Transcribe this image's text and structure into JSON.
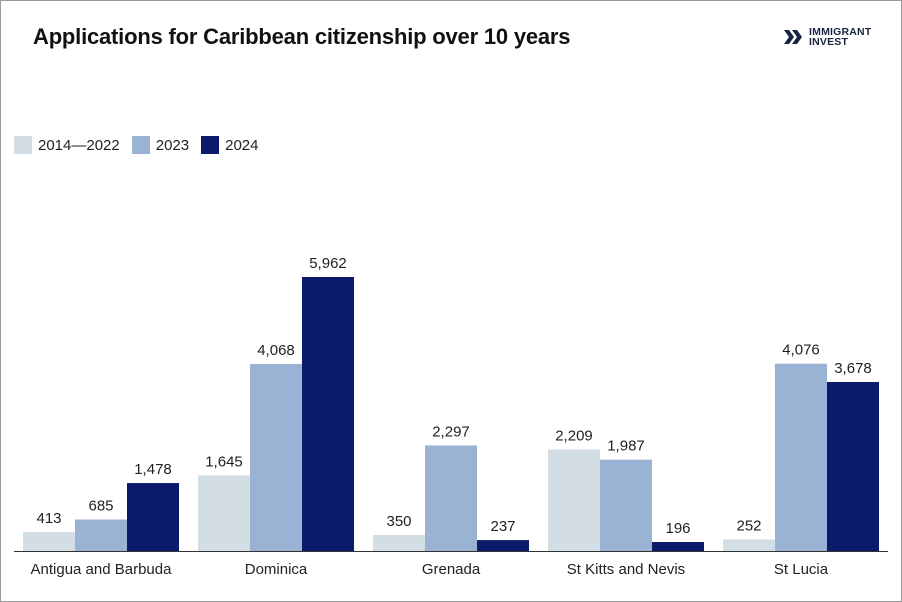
{
  "logo": {
    "line1": "IMMIGRANT",
    "line2": "INVEST"
  },
  "chart_data": {
    "type": "bar",
    "title": "Applications for Caribbean citizenship over 10 years",
    "categories": [
      "Antigua and Barbuda",
      "Dominica",
      "Grenada",
      "St Kitts and Nevis",
      "St Lucia"
    ],
    "series": [
      {
        "name": "2014—2022",
        "color": "#d3dee4",
        "values": [
          413,
          1645,
          350,
          2209,
          252
        ]
      },
      {
        "name": "2023",
        "color": "#9ab3d4",
        "values": [
          685,
          4068,
          2297,
          1987,
          4076
        ]
      },
      {
        "name": "2024",
        "color": "#0c1a6b",
        "values": [
          1478,
          5962,
          237,
          196,
          3678
        ]
      }
    ],
    "data_labels": [
      [
        "413",
        "1,645",
        "350",
        "2,209",
        "252"
      ],
      [
        "685",
        "4,068",
        "2,297",
        "1,987",
        "4,076"
      ],
      [
        "1,478",
        "5,962",
        "237",
        "196",
        "3,678"
      ]
    ],
    "legend_position": "top-left",
    "grid": false,
    "ylim": [
      0,
      6500
    ]
  }
}
